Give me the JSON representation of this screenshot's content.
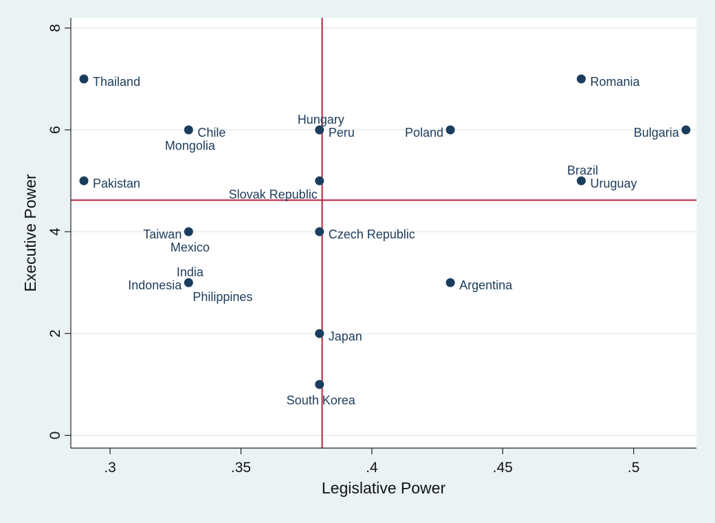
{
  "chart_data": {
    "type": "scatter",
    "xlabel": "Legislative Power",
    "ylabel": "Executive Power",
    "xlim": [
      0.285,
      0.524
    ],
    "ylim": [
      -0.25,
      8.2
    ],
    "xticks": [
      0.3,
      0.35,
      0.4,
      0.45,
      0.5
    ],
    "xtick_labels": [
      ".3",
      ".35",
      ".4",
      ".45",
      ".5"
    ],
    "yticks": [
      0,
      2,
      4,
      6,
      8
    ],
    "ytick_labels": [
      "0",
      "2",
      "4",
      "6",
      "8"
    ],
    "grid": true,
    "reference_lines": {
      "x": 0.381,
      "y": 4.62
    },
    "colors": {
      "marker": "#1a3d5e",
      "reference_line": "#b5213f",
      "plot_bg": "#ffffff",
      "outer_bg": "#eaf2f3",
      "grid": "#e6ecef"
    },
    "points": [
      {
        "label": "Thailand",
        "x": 0.29,
        "y": 7,
        "pos": "right"
      },
      {
        "label": "Pakistan",
        "x": 0.29,
        "y": 5,
        "pos": "right"
      },
      {
        "label": "Chile",
        "x": 0.33,
        "y": 6,
        "pos": "right"
      },
      {
        "label": "Mongolia",
        "x": 0.33,
        "y": 6,
        "pos": "below"
      },
      {
        "label": "Taiwan",
        "x": 0.33,
        "y": 4,
        "pos": "left"
      },
      {
        "label": "Mexico",
        "x": 0.33,
        "y": 4,
        "pos": "below"
      },
      {
        "label": "India",
        "x": 0.33,
        "y": 3,
        "pos": "above"
      },
      {
        "label": "Indonesia",
        "x": 0.33,
        "y": 3,
        "pos": "left"
      },
      {
        "label": "Philippines",
        "x": 0.33,
        "y": 3,
        "pos": "below-right"
      },
      {
        "label": "Hungary",
        "x": 0.38,
        "y": 6,
        "pos": "above"
      },
      {
        "label": "Peru",
        "x": 0.38,
        "y": 6,
        "pos": "right"
      },
      {
        "label": "Slovak Republic",
        "x": 0.38,
        "y": 5,
        "pos": "below-left"
      },
      {
        "label": "Czech Republic",
        "x": 0.38,
        "y": 4,
        "pos": "right"
      },
      {
        "label": "Japan",
        "x": 0.38,
        "y": 2,
        "pos": "right"
      },
      {
        "label": "South Korea",
        "x": 0.38,
        "y": 1,
        "pos": "below"
      },
      {
        "label": "Poland",
        "x": 0.43,
        "y": 6,
        "pos": "left"
      },
      {
        "label": "Argentina",
        "x": 0.43,
        "y": 3,
        "pos": "right"
      },
      {
        "label": "Romania",
        "x": 0.48,
        "y": 7,
        "pos": "right"
      },
      {
        "label": "Brazil",
        "x": 0.48,
        "y": 5,
        "pos": "above"
      },
      {
        "label": "Uruguay",
        "x": 0.48,
        "y": 5,
        "pos": "right"
      },
      {
        "label": "Bulgaria",
        "x": 0.52,
        "y": 6,
        "pos": "left"
      }
    ]
  }
}
